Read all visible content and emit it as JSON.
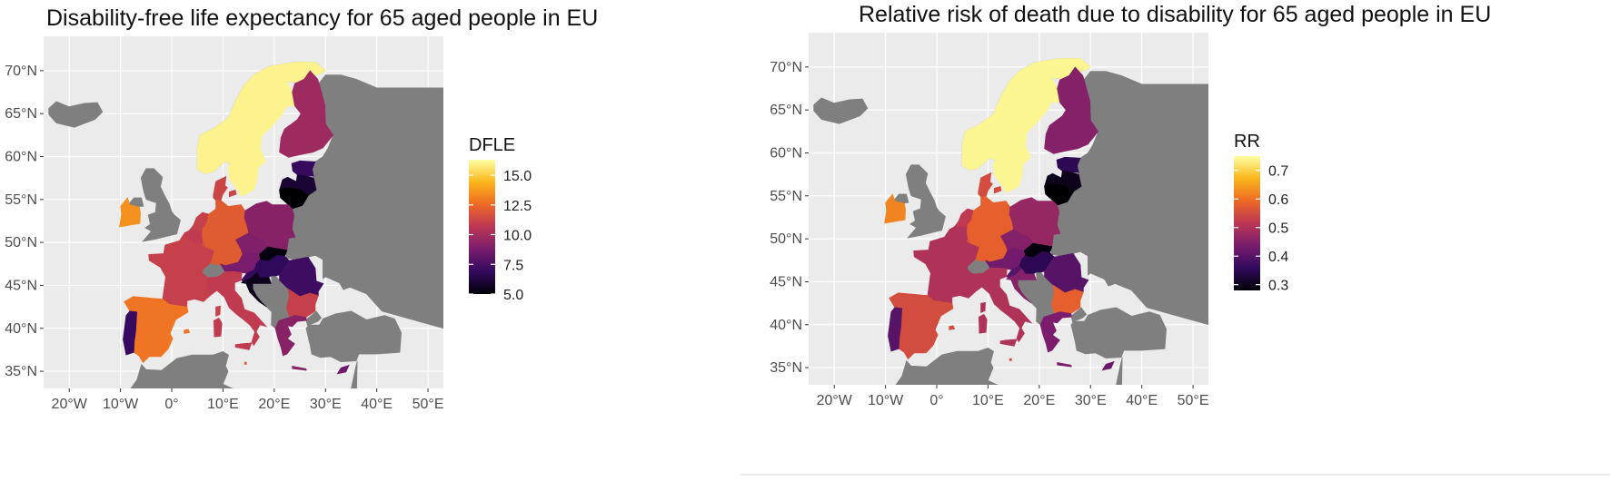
{
  "colors": {
    "panel_bg": "#ebebeb",
    "grid": "#ffffff",
    "non_eu_land": "#7f7f7f",
    "ramp": [
      "#000004",
      "#320a5e",
      "#781c6d",
      "#bc3754",
      "#ed6925",
      "#fbb61a",
      "#fcffa4"
    ]
  },
  "axes": {
    "x_ticks": [
      {
        "value": -20,
        "label": "20°W"
      },
      {
        "value": -10,
        "label": "10°W"
      },
      {
        "value": 0,
        "label": "0°"
      },
      {
        "value": 10,
        "label": "10°E"
      },
      {
        "value": 20,
        "label": "20°E"
      },
      {
        "value": 30,
        "label": "30°E"
      },
      {
        "value": 40,
        "label": "40°E"
      },
      {
        "value": 50,
        "label": "50°E"
      }
    ],
    "y_ticks": [
      {
        "value": 70,
        "label": "70°N"
      },
      {
        "value": 65,
        "label": "65°N"
      },
      {
        "value": 60,
        "label": "60°N"
      },
      {
        "value": 55,
        "label": "55°N"
      },
      {
        "value": 50,
        "label": "50°N"
      },
      {
        "value": 45,
        "label": "45°N"
      },
      {
        "value": 40,
        "label": "40°N"
      },
      {
        "value": 35,
        "label": "35°N"
      }
    ],
    "xlim": [
      -25,
      53
    ],
    "ylim": [
      33,
      74
    ]
  },
  "maps": [
    {
      "title": "Disability-free life expectancy for 65 aged people in EU",
      "legend": {
        "title": "DFLE",
        "min": 5.0,
        "max": 16.3,
        "breaks": [
          {
            "value": 15.0,
            "label": "15.0"
          },
          {
            "value": 12.5,
            "label": "12.5"
          },
          {
            "value": 10.0,
            "label": "10.0"
          },
          {
            "value": 7.5,
            "label": "7.5"
          },
          {
            "value": 5.0,
            "label": "5.0"
          }
        ]
      },
      "levels": {
        "Sweden": 16.0,
        "Norway": 16.0,
        "Finland": 9.8,
        "Estonia": 7.0,
        "Latvia": 6.0,
        "Lithuania": 5.0,
        "Denmark": 11.2,
        "Ireland": 13.5,
        "Netherlands": 11.0,
        "Belgium": 10.8,
        "Luxembourg": 11.5,
        "Germany": 12.0,
        "Poland": 9.2,
        "Czechia": 9.0,
        "Slovakia": 5.2,
        "Austria": 8.8,
        "Hungary": 6.8,
        "France": 11.0,
        "Slovenia": 7.0,
        "Croatia": 5.5,
        "Romania": 7.2,
        "Bulgaria": 11.0,
        "Greece": 9.2,
        "Italy": 10.8,
        "Spain": 12.8,
        "Portugal": 7.0,
        "Cyprus": 8.5,
        "Malta": 12.0,
        "Baleares": 12.8,
        "Sardinia": 10.8,
        "Sicily": 10.8,
        "Corsica": 11.0,
        "Crete": 9.2
      }
    },
    {
      "title": "Relative risk of death due to disability for 65 aged people in EU",
      "legend": {
        "title": "RR",
        "min": 0.28,
        "max": 0.75,
        "breaks": [
          {
            "value": 0.7,
            "label": "0.7"
          },
          {
            "value": 0.6,
            "label": "0.6"
          },
          {
            "value": 0.5,
            "label": "0.5"
          },
          {
            "value": 0.4,
            "label": "0.4"
          },
          {
            "value": 0.3,
            "label": "0.3"
          }
        ]
      },
      "levels": {
        "Sweden": 0.74,
        "Norway": 0.74,
        "Finland": 0.45,
        "Estonia": 0.35,
        "Latvia": 0.3,
        "Lithuania": 0.28,
        "Denmark": 0.55,
        "Ireland": 0.62,
        "Netherlands": 0.52,
        "Belgium": 0.5,
        "Luxembourg": 0.55,
        "Germany": 0.58,
        "Poland": 0.47,
        "Czechia": 0.45,
        "Slovakia": 0.29,
        "Austria": 0.43,
        "Hungary": 0.35,
        "France": 0.5,
        "Slovenia": 0.4,
        "Croatia": 0.45,
        "Romania": 0.4,
        "Bulgaria": 0.58,
        "Greece": 0.44,
        "Italy": 0.5,
        "Spain": 0.55,
        "Portugal": 0.4,
        "Cyprus": 0.42,
        "Malta": 0.55,
        "Baleares": 0.55,
        "Sardinia": 0.5,
        "Sicily": 0.5,
        "Corsica": 0.5,
        "Crete": 0.44
      }
    }
  ]
}
